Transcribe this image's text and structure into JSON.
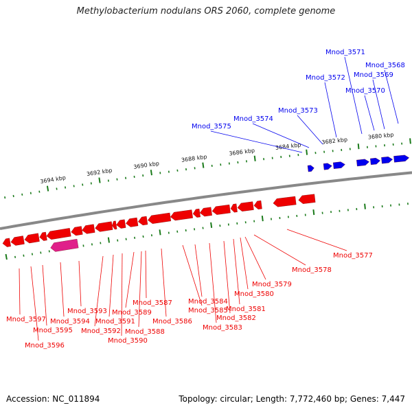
{
  "title": "Methylobacterium nodulans ORS 2060, complete genome",
  "footer": {
    "accession": "Accession: NC_011894",
    "topology": "Topology: circular; Length: 7,772,460 bp; Genes: 7,447"
  },
  "colors": {
    "forward": "#0000ee",
    "reverse": "#ee0000",
    "rna": "#e0208a",
    "backbone": "#888888",
    "ticks": "#1a7a1a"
  },
  "ruler_labels": [
    "3680 kbp",
    "3682 kbp",
    "3684 kbp",
    "3686 kbp",
    "3688 kbp",
    "3690 kbp",
    "3692 kbp",
    "3694 kbp"
  ],
  "forward_genes": [
    "Mnod_3568",
    "Mnod_3569",
    "Mnod_3570",
    "Mnod_3571",
    "Mnod_3572",
    "Mnod_3573",
    "Mnod_3574",
    "Mnod_3575"
  ],
  "reverse_genes": [
    "Mnod_3577",
    "Mnod_3578",
    "Mnod_3579",
    "Mnod_3580",
    "Mnod_3581",
    "Mnod_3582",
    "Mnod_3583",
    "Mnod_3584",
    "Mnod_3585",
    "Mnod_3586",
    "Mnod_3587",
    "Mnod_3588",
    "Mnod_3589",
    "Mnod_3590",
    "Mnod_3591",
    "Mnod_3592",
    "Mnod_3593",
    "Mnod_3594",
    "Mnod_3595",
    "Mnod_3596",
    "Mnod_3597"
  ]
}
